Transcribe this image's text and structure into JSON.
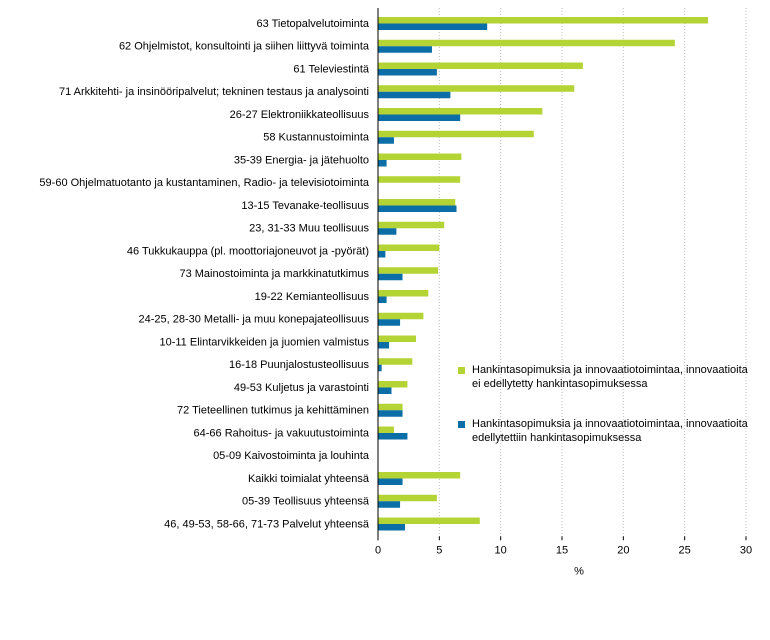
{
  "chart_data": {
    "type": "bar",
    "orientation": "horizontal",
    "title": "",
    "xlabel": "%",
    "ylabel": "",
    "xlim": [
      0,
      30
    ],
    "xticks": [
      0,
      5,
      10,
      15,
      20,
      25,
      30
    ],
    "grid": true,
    "legend_position": "right",
    "categories": [
      "63 Tietopalvelutoiminta",
      "62 Ohjelmistot, konsultointi ja siihen liittyvä toiminta",
      "61 Televiestintä",
      "71 Arkkitehti- ja insinööripalvelut; tekninen testaus ja analysointi",
      "26-27 Elektroniikkateollisuus",
      "58 Kustannustoiminta",
      "35-39 Energia- ja jätehuolto",
      "59-60 Ohjelmatuotanto ja kustantaminen, Radio- ja televisiotoiminta",
      "13-15 Tevanake-teollisuus",
      "23, 31-33 Muu teollisuus",
      "46 Tukkukauppa (pl. moottoriajoneuvot ja -pyörät)",
      "73 Mainostoiminta ja markkinatutkimus",
      "19-22 Kemianteollisuus",
      "24-25, 28-30 Metalli- ja muu konepajateollisuus",
      "10-11 Elintarvikkeiden ja juomien valmistus",
      "16-18 Puunjalostusteollisuus",
      "49-53 Kuljetus ja varastointi",
      "72 Tieteellinen tutkimus ja kehittäminen",
      "64-66 Rahoitus- ja vakuutustoiminta",
      "05-09 Kaivostoiminta ja louhinta",
      "Kaikki toimialat yhteensä",
      "05-39 Teollisuus yhteensä",
      "46, 49-53, 58-66, 71-73 Palvelut yhteensä"
    ],
    "series": [
      {
        "name": "Hankintasopimuksia ja innovaatiotoimintaa, innovaatioita ei edellytetty hankintasopimuksessa",
        "color": "#b4d334",
        "values": [
          26.9,
          24.2,
          16.7,
          16.0,
          13.4,
          12.7,
          6.8,
          6.7,
          6.3,
          5.4,
          5.0,
          4.9,
          4.1,
          3.7,
          3.1,
          2.8,
          2.4,
          2.0,
          1.3,
          0.0,
          6.7,
          4.8,
          8.3
        ]
      },
      {
        "name": "Hankintasopimuksia ja innovaatiotoimintaa, innovaatioita edellytettiin hankintasopimuksessa",
        "color": "#0b6ea6",
        "values": [
          8.9,
          4.4,
          4.8,
          5.9,
          6.7,
          1.3,
          0.7,
          0.0,
          6.4,
          1.5,
          0.6,
          2.0,
          0.7,
          1.8,
          0.9,
          0.3,
          1.1,
          2.0,
          2.4,
          0.0,
          2.0,
          1.8,
          2.2
        ]
      }
    ]
  }
}
